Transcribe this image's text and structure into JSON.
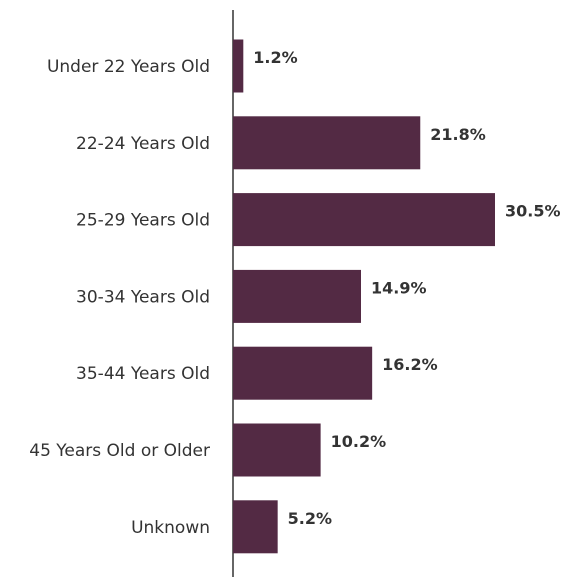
{
  "chart_data": {
    "type": "bar",
    "orientation": "horizontal",
    "categories": [
      "Under 22 Years Old",
      "22-24 Years Old",
      "25-29 Years Old",
      "30-34 Years Old",
      "35-44 Years Old",
      "45 Years Old or Older",
      "Unknown"
    ],
    "values": [
      1.2,
      21.8,
      30.5,
      14.9,
      16.2,
      10.2,
      5.2
    ],
    "value_labels": [
      "1.2%",
      "21.8%",
      "30.5%",
      "14.9%",
      "16.2%",
      "10.2%",
      "5.2%"
    ],
    "xlim": [
      0,
      30.5
    ],
    "grid": false,
    "legend": "none",
    "bar_color": "#532A44",
    "axis_color": "#333333"
  }
}
